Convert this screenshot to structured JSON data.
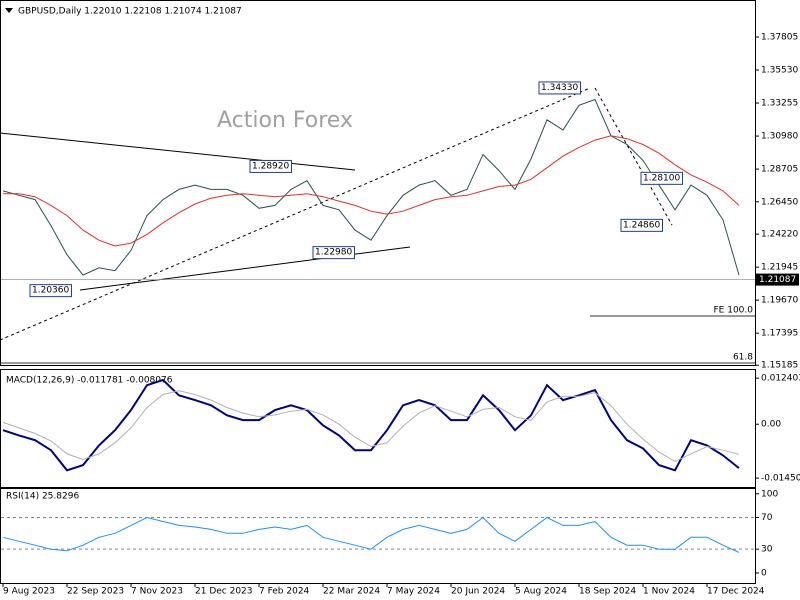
{
  "chart_data": [
    {
      "type": "line",
      "title": "GBPUSD,Daily  1.22010 1.22108 1.21074 1.21087",
      "watermark": "Action Forex",
      "series": [
        {
          "color": "#2f4f4f",
          "values": [
            1.272,
            1.269,
            1.266,
            1.248,
            1.228,
            1.214,
            1.219,
            1.217,
            1.231,
            1.255,
            1.266,
            1.273,
            1.276,
            1.273,
            1.273,
            1.269,
            1.26,
            1.262,
            1.273,
            1.279,
            1.262,
            1.259,
            1.245,
            1.238,
            1.255,
            1.269,
            1.276,
            1.279,
            1.269,
            1.273,
            1.297,
            1.286,
            1.273,
            1.294,
            1.321,
            1.314,
            1.331,
            1.335,
            1.31,
            1.304,
            1.293,
            1.276,
            1.259,
            1.276,
            1.269,
            1.252,
            1.214
          ]
        },
        {
          "color": "#e03030",
          "values": [
            1.27,
            1.27,
            1.268,
            1.262,
            1.255,
            1.245,
            1.238,
            1.234,
            1.236,
            1.242,
            1.25,
            1.257,
            1.263,
            1.267,
            1.269,
            1.27,
            1.269,
            1.268,
            1.269,
            1.27,
            1.268,
            1.265,
            1.262,
            1.258,
            1.256,
            1.258,
            1.262,
            1.266,
            1.268,
            1.269,
            1.272,
            1.275,
            1.276,
            1.28,
            1.288,
            1.296,
            1.302,
            1.307,
            1.31,
            1.308,
            1.304,
            1.298,
            1.29,
            1.283,
            1.278,
            1.272,
            1.262
          ]
        }
      ],
      "annotations": [
        {
          "value": 1.3433,
          "label": "1.34330"
        },
        {
          "value": 1.2892,
          "label": "1.28920"
        },
        {
          "value": 1.2298,
          "label": "1.22980"
        },
        {
          "value": 1.2036,
          "label": "1.20360"
        },
        {
          "value": 1.281,
          "label": "1.28100"
        },
        {
          "value": 1.2486,
          "label": "1.24860"
        }
      ],
      "fibo_labels": [
        "FE 100.0",
        "61.8"
      ],
      "last_price": {
        "value": 1.21087,
        "label": "1.21087"
      },
      "ylim": [
        1.1527,
        1.4015
      ],
      "yticks": [
        1.37805,
        {
          "value": 1.3553,
          "label": "1.35530"
        },
        1.33255,
        {
          "value": 1.3098,
          "label": "1.30980"
        },
        1.28705,
        {
          "value": 1.2645,
          "label": "1.26450"
        },
        {
          "value": 1.2422,
          "label": "1.24220"
        },
        1.21945,
        {
          "value": 1.1967,
          "label": "1.19670"
        },
        1.17395,
        1.15185
      ]
    },
    {
      "type": "line",
      "title": "MACD(12,26,9) -0.011781 -0.008076",
      "series": [
        {
          "color": "#000080",
          "values": [
            -0.0016,
            -0.003,
            -0.0043,
            -0.007,
            -0.0124,
            -0.011,
            -0.0057,
            -0.0016,
            0.0038,
            0.0105,
            0.0119,
            0.0078,
            0.0065,
            0.0051,
            0.0024,
            0.0011,
            0.0011,
            0.0038,
            0.0051,
            0.0038,
            -0.0003,
            -0.003,
            -0.007,
            -0.007,
            -0.0016,
            0.0051,
            0.0065,
            0.0051,
            0.0011,
            0.0011,
            0.0078,
            0.0038,
            -0.0016,
            0.0024,
            0.0105,
            0.0065,
            0.0078,
            0.0092,
            0.0011,
            -0.0043,
            -0.0065,
            -0.011,
            -0.0124,
            -0.0043,
            -0.0057,
            -0.0084,
            -0.0118
          ]
        },
        {
          "color": "#b0b0b0",
          "values": [
            0.0005,
            -0.001,
            -0.0025,
            -0.0045,
            -0.008,
            -0.0095,
            -0.008,
            -0.005,
            -0.001,
            0.0045,
            0.008,
            0.009,
            0.008,
            0.0065,
            0.0045,
            0.003,
            0.002,
            0.0025,
            0.0035,
            0.004,
            0.0025,
            0,
            -0.0035,
            -0.006,
            -0.005,
            -0.0005,
            0.003,
            0.005,
            0.0035,
            0.002,
            0.004,
            0.0045,
            0.002,
            0.001,
            0.006,
            0.0075,
            0.0075,
            0.0085,
            0.005,
            0,
            -0.004,
            -0.0075,
            -0.01,
            -0.008,
            -0.006,
            -0.007,
            -0.0081
          ]
        }
      ],
      "ylim": [
        -0.0169,
        0.0146
      ],
      "yticks": [
        0.012403,
        {
          "value": 0,
          "label": "0.00"
        },
        -0.014502
      ]
    },
    {
      "type": "line",
      "title": "RSI(14) 25.8296",
      "categories": [
        "9 Aug 2023",
        null,
        null,
        null,
        "22 Sep 2023",
        null,
        null,
        null,
        "7 Nov 2023",
        null,
        null,
        null,
        "21 Dec 2023",
        null,
        null,
        null,
        "7 Feb 2024",
        null,
        null,
        null,
        "22 Mar 2024",
        null,
        null,
        null,
        "7 May 2024",
        null,
        null,
        null,
        "20 Jun 2024",
        null,
        null,
        null,
        "5 Aug 2024",
        null,
        null,
        null,
        "18 Sep 2024",
        null,
        null,
        null,
        "1 Nov 2024",
        null,
        null,
        null,
        "17 Dec 2024",
        null,
        null
      ],
      "series": [
        {
          "color": "#1e90ff",
          "values": [
            45,
            40,
            35,
            30,
            28,
            35,
            45,
            50,
            60,
            70,
            65,
            60,
            58,
            55,
            50,
            50,
            55,
            58,
            55,
            60,
            45,
            40,
            35,
            30,
            45,
            55,
            60,
            55,
            50,
            55,
            70,
            50,
            40,
            55,
            70,
            60,
            60,
            65,
            45,
            35,
            35,
            30,
            30,
            45,
            45,
            35,
            26
          ]
        }
      ],
      "ylim": [
        -12.7,
        106
      ],
      "yticks": [
        0,
        30,
        70,
        100
      ],
      "level_ticks": [
        30,
        70
      ]
    }
  ]
}
